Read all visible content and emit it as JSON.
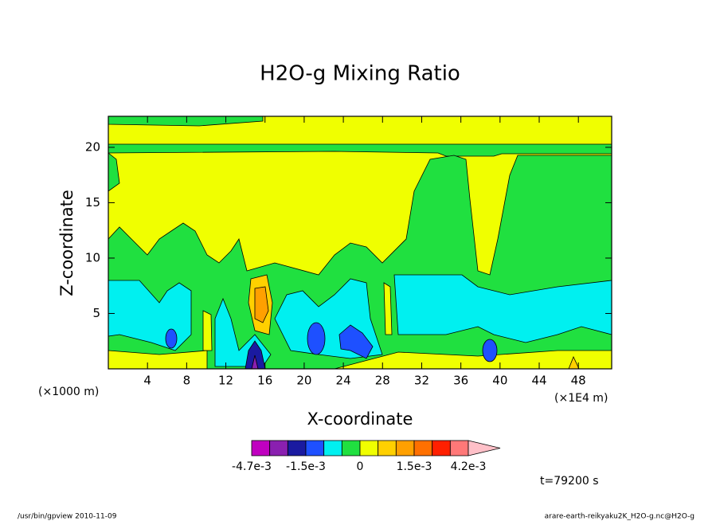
{
  "chart_data": {
    "type": "contour",
    "title": "H2O-g Mixing Ratio",
    "x_label": "X-coordinate",
    "y_label": "Z-coordinate",
    "x_unit": "(×1E4 m)",
    "y_unit": "(×1000 m)",
    "xlim": [
      0,
      51.4
    ],
    "xticks": [
      4,
      8,
      12,
      16,
      20,
      24,
      28,
      32,
      36,
      40,
      44,
      48
    ],
    "ylim": [
      0,
      22.8
    ],
    "yticks": [
      5,
      10,
      15,
      20
    ],
    "colorbar": {
      "levels": [
        -0.0047,
        -0.0031,
        -0.0023,
        -0.0015,
        -0.001,
        -0.0005,
        0,
        0.0005,
        0.001,
        0.0015,
        0.0025,
        0.0035,
        0.0042
      ],
      "colors": [
        "#c000c0",
        "#8a20b0",
        "#1a1aa0",
        "#1e50ff",
        "#00f0f0",
        "#20e040",
        "#f0ff00",
        "#ffd000",
        "#ffa000",
        "#ff7000",
        "#ff2000",
        "#ff7878",
        "#ffc0c8"
      ],
      "ticks": [
        {
          "value": -0.0047,
          "label": "-4.7e-3"
        },
        {
          "value": -0.0015,
          "label": "-1.5e-3"
        },
        0,
        {
          "value": 0.0015,
          "label": "1.5e-3"
        },
        {
          "value": 0.0042,
          "label": "4.2e-3"
        }
      ]
    },
    "time_label": "t=79200 s",
    "footer_left": "/usr/bin/gpview  2010-11-09",
    "footer_right": "arare-earth-reikyaku2K_H2O-g.nc@H2O-g"
  }
}
